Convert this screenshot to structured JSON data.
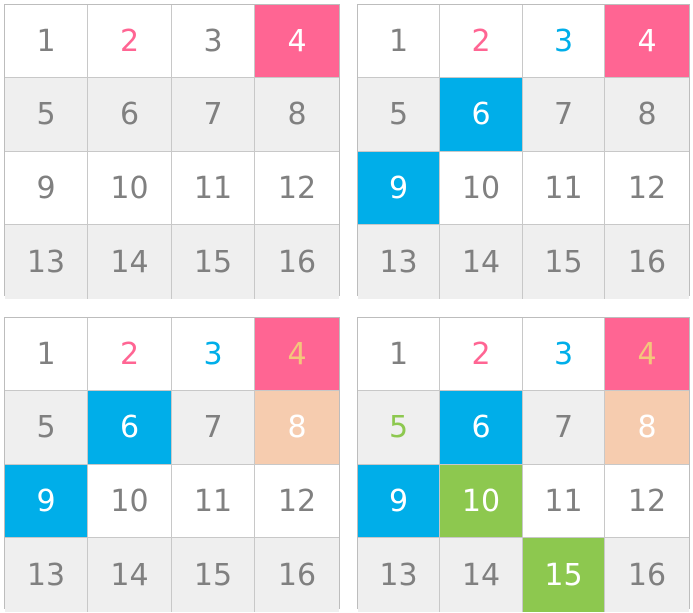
{
  "colors": {
    "default_text": "#808080",
    "white_bg": "#ffffff",
    "gray_bg": "#efefef",
    "pink": "#ff6593",
    "blue": "#00aee9",
    "peach": "#f6ccaf",
    "gold": "#f3c67c",
    "green": "#8dc84f"
  },
  "grids": [
    {
      "cells": [
        {
          "label": "1"
        },
        {
          "label": "2",
          "text": "#ff6593"
        },
        {
          "label": "3"
        },
        {
          "label": "4",
          "bg": "#ff6593",
          "text": "#ffffff"
        },
        {
          "label": "5"
        },
        {
          "label": "6"
        },
        {
          "label": "7"
        },
        {
          "label": "8"
        },
        {
          "label": "9"
        },
        {
          "label": "10"
        },
        {
          "label": "11"
        },
        {
          "label": "12"
        },
        {
          "label": "13"
        },
        {
          "label": "14"
        },
        {
          "label": "15"
        },
        {
          "label": "16"
        }
      ]
    },
    {
      "cells": [
        {
          "label": "1"
        },
        {
          "label": "2",
          "text": "#ff6593"
        },
        {
          "label": "3",
          "text": "#00aee9"
        },
        {
          "label": "4",
          "bg": "#ff6593",
          "text": "#ffffff"
        },
        {
          "label": "5"
        },
        {
          "label": "6",
          "bg": "#00aee9",
          "text": "#ffffff"
        },
        {
          "label": "7"
        },
        {
          "label": "8"
        },
        {
          "label": "9",
          "bg": "#00aee9",
          "text": "#ffffff"
        },
        {
          "label": "10"
        },
        {
          "label": "11"
        },
        {
          "label": "12"
        },
        {
          "label": "13"
        },
        {
          "label": "14"
        },
        {
          "label": "15"
        },
        {
          "label": "16"
        }
      ]
    },
    {
      "cells": [
        {
          "label": "1"
        },
        {
          "label": "2",
          "text": "#ff6593"
        },
        {
          "label": "3",
          "text": "#00aee9"
        },
        {
          "label": "4",
          "bg": "#ff6593",
          "text": "#f3c67c"
        },
        {
          "label": "5"
        },
        {
          "label": "6",
          "bg": "#00aee9",
          "text": "#ffffff"
        },
        {
          "label": "7"
        },
        {
          "label": "8",
          "bg": "#f6ccaf",
          "text": "#ffffff"
        },
        {
          "label": "9",
          "bg": "#00aee9",
          "text": "#ffffff"
        },
        {
          "label": "10"
        },
        {
          "label": "11"
        },
        {
          "label": "12"
        },
        {
          "label": "13"
        },
        {
          "label": "14"
        },
        {
          "label": "15"
        },
        {
          "label": "16"
        }
      ]
    },
    {
      "cells": [
        {
          "label": "1"
        },
        {
          "label": "2",
          "text": "#ff6593"
        },
        {
          "label": "3",
          "text": "#00aee9"
        },
        {
          "label": "4",
          "bg": "#ff6593",
          "text": "#f3c67c"
        },
        {
          "label": "5",
          "text": "#8dc84f"
        },
        {
          "label": "6",
          "bg": "#00aee9",
          "text": "#ffffff"
        },
        {
          "label": "7"
        },
        {
          "label": "8",
          "bg": "#f6ccaf",
          "text": "#ffffff"
        },
        {
          "label": "9",
          "bg": "#00aee9",
          "text": "#ffffff"
        },
        {
          "label": "10",
          "bg": "#8dc84f",
          "text": "#ffffff"
        },
        {
          "label": "11"
        },
        {
          "label": "12"
        },
        {
          "label": "13"
        },
        {
          "label": "14"
        },
        {
          "label": "15",
          "bg": "#8dc84f",
          "text": "#ffffff"
        },
        {
          "label": "16"
        }
      ]
    }
  ]
}
